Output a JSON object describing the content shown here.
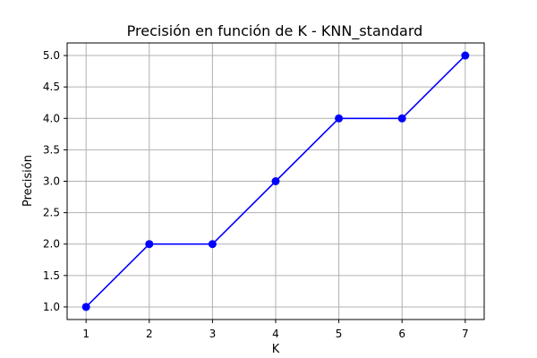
{
  "chart_data": {
    "type": "line",
    "title": "Precisión en función de K - KNN_standard",
    "xlabel": "K",
    "ylabel": "Precisión",
    "x": [
      1,
      2,
      3,
      4,
      5,
      6,
      7
    ],
    "series": [
      {
        "values": [
          1.0,
          2.0,
          2.0,
          3.0,
          4.0,
          4.0,
          5.0
        ],
        "color": "#0000ff",
        "marker": "circle"
      }
    ],
    "xticks": [
      "1",
      "2",
      "3",
      "4",
      "5",
      "6",
      "7"
    ],
    "yticks": [
      "1.0",
      "1.5",
      "2.0",
      "2.5",
      "3.0",
      "3.5",
      "4.0",
      "4.5",
      "5.0"
    ],
    "xlim": [
      0.7,
      7.3
    ],
    "ylim": [
      0.8,
      5.2
    ],
    "grid": true,
    "legend": false
  }
}
